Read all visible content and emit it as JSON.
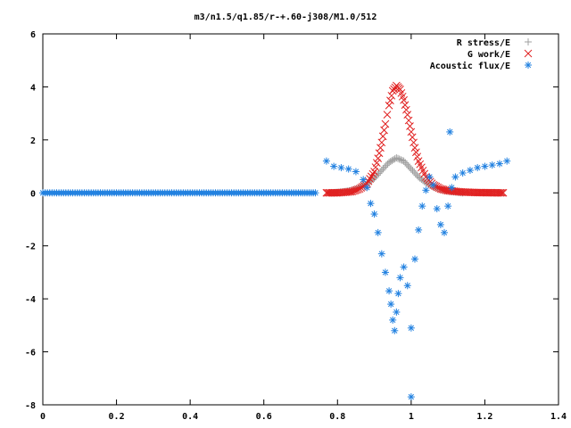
{
  "chart_data": {
    "type": "scatter",
    "title": "m3/n1.5/q1.85/r-+.60-j308/M1.0/512",
    "xlabel": "",
    "ylabel": "",
    "xlim": [
      0,
      1.4
    ],
    "ylim": [
      -8,
      6
    ],
    "x_ticks": [
      "0",
      "0.2",
      "0.4",
      "0.6",
      "0.8",
      "1",
      "1.2",
      "1.4"
    ],
    "y_ticks": [
      "-8",
      "-6",
      "-4",
      "-2",
      "0",
      "2",
      "4",
      "6"
    ],
    "grid": false,
    "legend_position": "top-right",
    "series": [
      {
        "name": "R stress/E",
        "marker": "plus",
        "color": "#a0a0a0",
        "points": [
          [
            0.78,
            0.0
          ],
          [
            0.8,
            0.02
          ],
          [
            0.82,
            0.05
          ],
          [
            0.84,
            0.1
          ],
          [
            0.86,
            0.2
          ],
          [
            0.88,
            0.35
          ],
          [
            0.9,
            0.55
          ],
          [
            0.92,
            0.85
          ],
          [
            0.94,
            1.15
          ],
          [
            0.96,
            1.32
          ],
          [
            0.98,
            1.2
          ],
          [
            1.0,
            0.9
          ],
          [
            1.02,
            0.6
          ],
          [
            1.04,
            0.38
          ],
          [
            1.06,
            0.22
          ],
          [
            1.08,
            0.12
          ],
          [
            1.1,
            0.06
          ],
          [
            1.12,
            0.03
          ],
          [
            1.14,
            0.0
          ]
        ]
      },
      {
        "name": "G work/E",
        "marker": "cross",
        "color": "#e02020",
        "points": [
          [
            0.77,
            0.0
          ],
          [
            0.8,
            0.0
          ],
          [
            0.82,
            0.02
          ],
          [
            0.84,
            0.05
          ],
          [
            0.86,
            0.15
          ],
          [
            0.88,
            0.35
          ],
          [
            0.9,
            0.8
          ],
          [
            0.91,
            1.3
          ],
          [
            0.92,
            1.9
          ],
          [
            0.93,
            2.6
          ],
          [
            0.94,
            3.3
          ],
          [
            0.95,
            3.85
          ],
          [
            0.96,
            4.05
          ],
          [
            0.97,
            3.9
          ],
          [
            0.98,
            3.5
          ],
          [
            0.99,
            2.95
          ],
          [
            1.0,
            2.3
          ],
          [
            1.01,
            1.7
          ],
          [
            1.02,
            1.2
          ],
          [
            1.04,
            0.6
          ],
          [
            1.06,
            0.3
          ],
          [
            1.08,
            0.15
          ],
          [
            1.1,
            0.08
          ],
          [
            1.14,
            0.03
          ],
          [
            1.18,
            0.01
          ],
          [
            1.25,
            0.0
          ]
        ]
      },
      {
        "name": "Acoustic flux/E",
        "marker": "star",
        "color": "#2080e0",
        "points": [
          [
            0.0,
            0.0
          ],
          [
            0.05,
            0.0
          ],
          [
            0.1,
            0.0
          ],
          [
            0.15,
            0.0
          ],
          [
            0.2,
            0.0
          ],
          [
            0.25,
            0.0
          ],
          [
            0.3,
            0.0
          ],
          [
            0.35,
            0.0
          ],
          [
            0.4,
            0.0
          ],
          [
            0.45,
            0.0
          ],
          [
            0.5,
            0.0
          ],
          [
            0.55,
            0.0
          ],
          [
            0.6,
            0.0
          ],
          [
            0.65,
            0.0
          ],
          [
            0.7,
            0.0
          ],
          [
            0.74,
            0.0
          ],
          [
            0.77,
            1.2
          ],
          [
            0.79,
            1.0
          ],
          [
            0.81,
            0.95
          ],
          [
            0.83,
            0.9
          ],
          [
            0.85,
            0.8
          ],
          [
            0.87,
            0.5
          ],
          [
            0.88,
            0.2
          ],
          [
            0.89,
            -0.4
          ],
          [
            0.9,
            -0.8
          ],
          [
            0.91,
            -1.5
          ],
          [
            0.92,
            -2.3
          ],
          [
            0.93,
            -3.0
          ],
          [
            0.94,
            -3.7
          ],
          [
            0.945,
            -4.2
          ],
          [
            0.95,
            -4.8
          ],
          [
            0.955,
            -5.2
          ],
          [
            0.96,
            -4.5
          ],
          [
            0.965,
            -3.8
          ],
          [
            0.97,
            -3.2
          ],
          [
            0.98,
            -2.8
          ],
          [
            0.99,
            -3.5
          ],
          [
            1.0,
            -5.1
          ],
          [
            1.0,
            -7.7
          ],
          [
            1.01,
            -2.5
          ],
          [
            1.02,
            -1.4
          ],
          [
            1.03,
            -0.5
          ],
          [
            1.04,
            0.1
          ],
          [
            1.05,
            0.6
          ],
          [
            1.06,
            0.3
          ],
          [
            1.07,
            -0.6
          ],
          [
            1.08,
            -1.2
          ],
          [
            1.09,
            -1.5
          ],
          [
            1.1,
            -0.5
          ],
          [
            1.105,
            2.3
          ],
          [
            1.11,
            0.2
          ],
          [
            1.12,
            0.6
          ],
          [
            1.14,
            0.75
          ],
          [
            1.16,
            0.85
          ],
          [
            1.18,
            0.95
          ],
          [
            1.2,
            1.0
          ],
          [
            1.22,
            1.05
          ],
          [
            1.24,
            1.1
          ],
          [
            1.26,
            1.2
          ]
        ]
      }
    ]
  }
}
